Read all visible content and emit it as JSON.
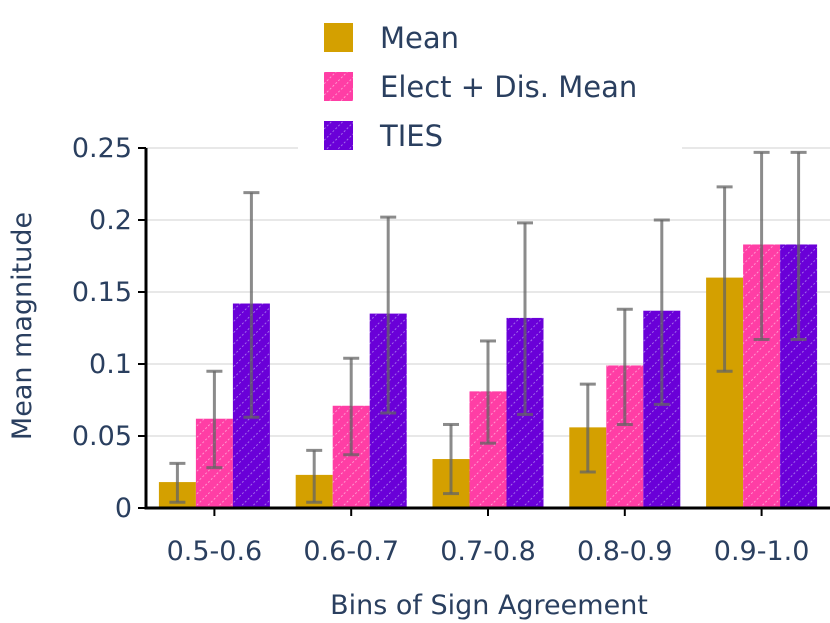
{
  "chart_data": {
    "type": "bar",
    "title": "",
    "xlabel": "Bins of Sign Agreement",
    "ylabel": "Mean magnitude",
    "ylim": [
      0,
      0.25
    ],
    "yticks": [
      0,
      0.05,
      0.1,
      0.15,
      0.2,
      0.25
    ],
    "ytick_labels": [
      "0",
      "0.05",
      "0.1",
      "0.15",
      "0.2",
      "0.25"
    ],
    "categories": [
      "0.5-0.6",
      "0.6-0.7",
      "0.7-0.8",
      "0.8-0.9",
      "0.9-1.0"
    ],
    "legend_position": "top",
    "series": [
      {
        "name": "Mean",
        "color": "#d4a000",
        "pattern": "none",
        "values": [
          0.018,
          0.023,
          0.034,
          0.056,
          0.16
        ],
        "err_low": [
          0.004,
          0.004,
          0.01,
          0.025,
          0.095
        ],
        "err_high": [
          0.031,
          0.04,
          0.058,
          0.086,
          0.223
        ]
      },
      {
        "name": "Elect + Dis. Mean",
        "color": "#ff3ea5",
        "pattern": "hatch",
        "values": [
          0.062,
          0.071,
          0.081,
          0.099,
          0.183
        ],
        "err_low": [
          0.028,
          0.037,
          0.045,
          0.058,
          0.117
        ],
        "err_high": [
          0.095,
          0.104,
          0.116,
          0.138,
          0.247
        ]
      },
      {
        "name": "TIES",
        "color": "#6a00d8",
        "pattern": "hatch",
        "values": [
          0.142,
          0.135,
          0.132,
          0.137,
          0.183
        ],
        "err_low": [
          0.063,
          0.066,
          0.065,
          0.072,
          0.117
        ],
        "err_high": [
          0.219,
          0.202,
          0.198,
          0.2,
          0.247
        ]
      }
    ]
  }
}
